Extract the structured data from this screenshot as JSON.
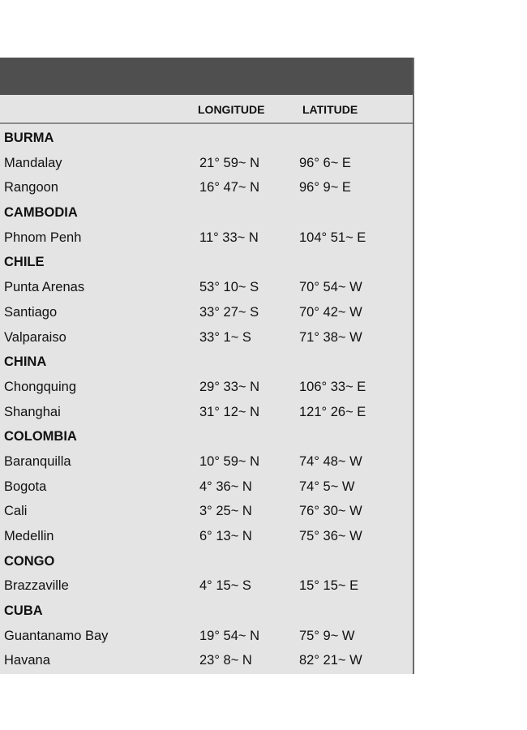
{
  "header": {
    "longitude_label": "LONGITUDE",
    "latitude_label": "LATITUDE"
  },
  "rows": [
    {
      "type": "group",
      "name": "BURMA"
    },
    {
      "type": "city",
      "name": "Mandalay",
      "longitude": "21° 59~ N",
      "latitude": "96° 6~ E"
    },
    {
      "type": "city",
      "name": "Rangoon",
      "longitude": "16° 47~ N",
      "latitude": "96° 9~ E"
    },
    {
      "type": "group",
      "name": "CAMBODIA"
    },
    {
      "type": "city",
      "name": "Phnom Penh",
      "longitude": "11° 33~ N",
      "latitude": "104° 51~ E"
    },
    {
      "type": "group",
      "name": "CHILE"
    },
    {
      "type": "city",
      "name": "Punta Arenas",
      "longitude": "53° 10~ S",
      "latitude": "70° 54~ W"
    },
    {
      "type": "city",
      "name": "Santiago",
      "longitude": "33° 27~ S",
      "latitude": "70° 42~ W"
    },
    {
      "type": "city",
      "name": "Valparaiso",
      "longitude": "33° 1~ S",
      "latitude": "71° 38~ W"
    },
    {
      "type": "group",
      "name": "CHINA"
    },
    {
      "type": "city",
      "name": "Chongquing",
      "longitude": "29° 33~ N",
      "latitude": "106° 33~ E"
    },
    {
      "type": "city",
      "name": "Shanghai",
      "longitude": "31° 12~ N",
      "latitude": "121° 26~ E"
    },
    {
      "type": "group",
      "name": "COLOMBIA"
    },
    {
      "type": "city",
      "name": "Baranquilla",
      "longitude": "10° 59~ N",
      "latitude": "74° 48~ W"
    },
    {
      "type": "city",
      "name": "Bogota",
      "longitude": "4° 36~ N",
      "latitude": "74° 5~ W"
    },
    {
      "type": "city",
      "name": "Cali",
      "longitude": "3° 25~ N",
      "latitude": "76° 30~ W"
    },
    {
      "type": "city",
      "name": "Medellin",
      "longitude": "6° 13~ N",
      "latitude": "75° 36~ W"
    },
    {
      "type": "group",
      "name": "CONGO"
    },
    {
      "type": "city",
      "name": "Brazzaville",
      "longitude": "4° 15~ S",
      "latitude": "15° 15~ E"
    },
    {
      "type": "group",
      "name": "CUBA"
    },
    {
      "type": "city",
      "name": "Guantanamo Bay",
      "longitude": "19° 54~ N",
      "latitude": "75° 9~ W"
    },
    {
      "type": "city",
      "name": "Havana",
      "longitude": "23° 8~ N",
      "latitude": "82° 21~ W"
    }
  ]
}
